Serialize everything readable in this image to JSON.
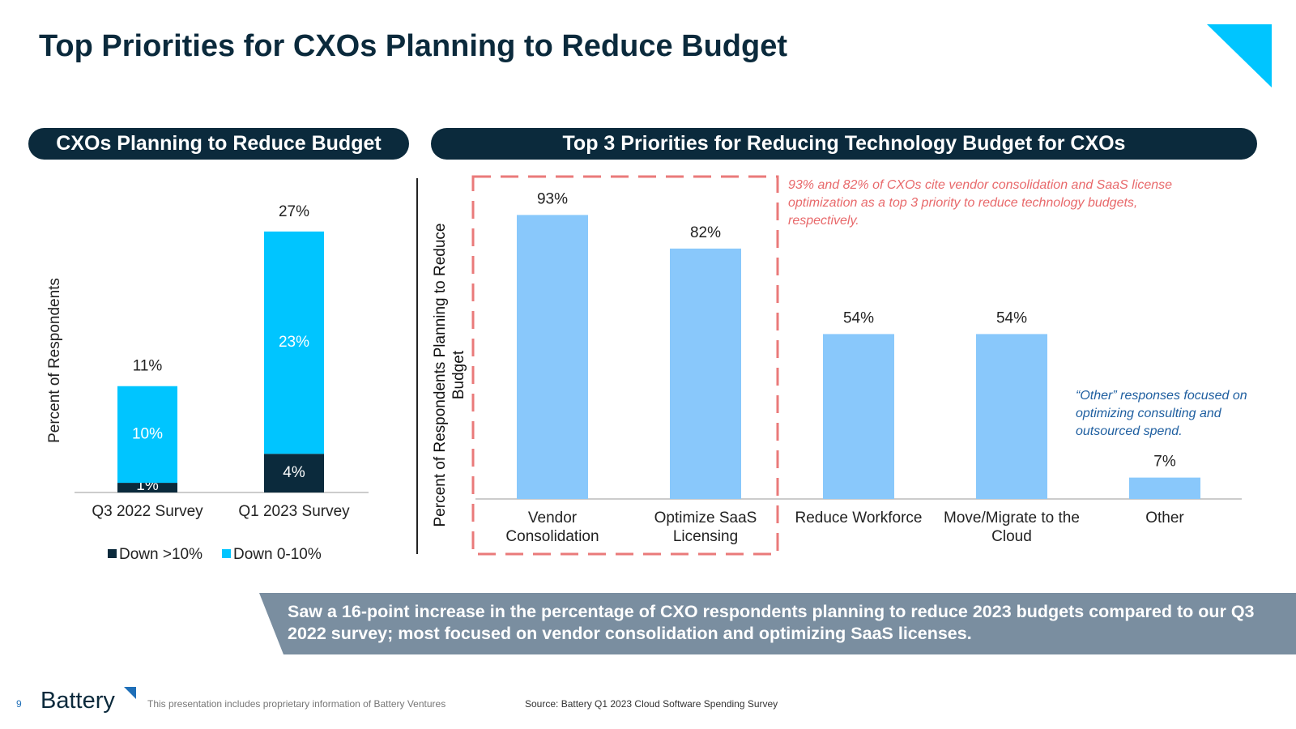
{
  "title": "Top Priorities for CXOs Planning to Reduce Budget",
  "chart_data": [
    {
      "type": "stacked_bar",
      "title": "CXOs Planning to Reduce Budget",
      "y_label": "Percent of Respondents",
      "categories": [
        "Q3 2022 Survey",
        "Q1 2023 Survey"
      ],
      "series": [
        {
          "name": "Down >10%",
          "color": "#0b2a3c",
          "values": [
            1,
            4
          ],
          "value_labels": [
            "1%",
            "4%"
          ]
        },
        {
          "name": "Down 0-10%",
          "color": "#00c5ff",
          "values": [
            10,
            23
          ],
          "value_labels": [
            "10%",
            "23%"
          ]
        }
      ],
      "totals": [
        11,
        27
      ],
      "total_labels": [
        "11%",
        "27%"
      ],
      "ylim": [
        0,
        30
      ],
      "legend": "bottom"
    },
    {
      "type": "bar",
      "title": "Top 3 Priorities for Reducing Technology Budget for CXOs",
      "y_label": "Percent of Respondents Planning to Reduce Budget",
      "categories": [
        "Vendor Consolidation",
        "Optimize SaaS Licensing",
        "Reduce Workforce",
        "Move/Migrate to the Cloud",
        "Other"
      ],
      "values": [
        93,
        82,
        54,
        54,
        7
      ],
      "value_labels": [
        "93%",
        "82%",
        "54%",
        "54%",
        "7%"
      ],
      "color": "#89c8fb",
      "ylim": [
        0,
        100
      ],
      "annotations": [
        "93% and 82% of CXOs cite vendor consolidation and SaaS license optimization as a top 3 priority to reduce technology budgets, respectively.",
        "“Other” responses focused on optimizing consulting and outsourced spend."
      ]
    }
  ],
  "banner": "Saw a 16-point increase in the percentage of CXO respondents planning to reduce 2023 budgets compared to our Q3 2022 survey; most focused on vendor consolidation and optimizing SaaS licenses.",
  "footer": {
    "page_number": "9",
    "logo": "Battery",
    "disclaimer": "This presentation includes proprietary information of Battery Ventures",
    "source": "Source: Battery Q1 2023 Cloud Software Spending Survey"
  }
}
